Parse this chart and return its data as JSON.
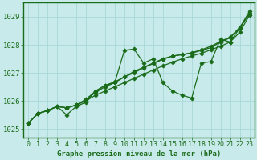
{
  "title": "Graphe pression niveau de la mer (hPa)",
  "hours": [
    0,
    1,
    2,
    3,
    4,
    5,
    6,
    7,
    8,
    9,
    10,
    11,
    12,
    13,
    14,
    15,
    16,
    17,
    18,
    19,
    20,
    21,
    22,
    23
  ],
  "ylim": [
    1024.7,
    1029.5
  ],
  "yticks": [
    1025,
    1026,
    1027,
    1028,
    1029
  ],
  "series": [
    [
      1025.2,
      1025.55,
      1025.65,
      1025.8,
      1025.5,
      1025.8,
      1025.95,
      1026.35,
      1026.55,
      1026.65,
      1027.8,
      1027.85,
      1027.35,
      1027.5,
      1026.65,
      1026.35,
      1026.2,
      1026.1,
      1027.35,
      1027.4,
      1028.2,
      1028.1,
      1028.6,
      1029.2
    ],
    [
      1025.2,
      1025.55,
      1025.65,
      1025.8,
      1025.75,
      1025.85,
      1026.0,
      1026.2,
      1026.35,
      1026.5,
      1026.65,
      1026.8,
      1026.95,
      1027.1,
      1027.25,
      1027.38,
      1027.5,
      1027.6,
      1027.7,
      1027.82,
      1027.95,
      1028.1,
      1028.45,
      1029.05
    ],
    [
      1025.2,
      1025.55,
      1025.65,
      1025.8,
      1025.75,
      1025.85,
      1026.05,
      1026.3,
      1026.5,
      1026.65,
      1026.85,
      1027.05,
      1027.2,
      1027.35,
      1027.5,
      1027.6,
      1027.65,
      1027.7,
      1027.8,
      1027.9,
      1028.1,
      1028.25,
      1028.6,
      1029.1
    ],
    [
      1025.2,
      1025.55,
      1025.65,
      1025.8,
      1025.75,
      1025.85,
      1026.05,
      1026.35,
      1026.55,
      1026.68,
      1026.85,
      1027.0,
      1027.18,
      1027.33,
      1027.48,
      1027.6,
      1027.65,
      1027.72,
      1027.82,
      1027.95,
      1028.12,
      1028.28,
      1028.62,
      1029.12
    ]
  ],
  "line_color": "#1a6b1a",
  "marker": "D",
  "markersize": 2.5,
  "linewidth": 0.9,
  "bg_color": "#c8eaea",
  "grid_color": "#a8d8d8",
  "border_color": "#1a6b1a",
  "tick_color": "#1a6b1a",
  "label_fontsize": 6.0,
  "xlabel_fontsize": 6.5
}
